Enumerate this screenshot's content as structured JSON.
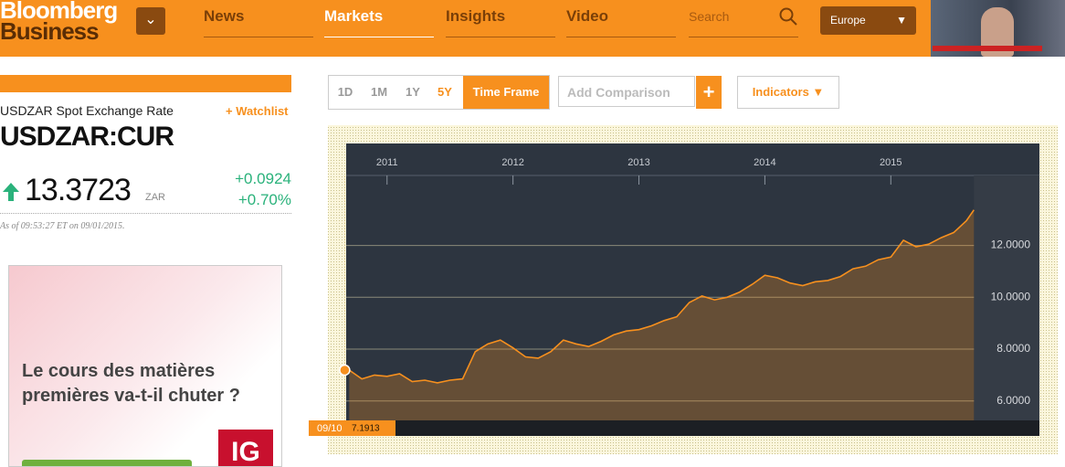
{
  "header": {
    "logo_top": "Bloomberg",
    "logo_bottom": "Business",
    "nav": [
      "News",
      "Markets",
      "Insights",
      "Video"
    ],
    "search": "Search",
    "region": "Europe"
  },
  "quote": {
    "name": "USDZAR Spot Exchange Rate",
    "watchlist": "+ Watchlist",
    "ticker": "USDZAR:CUR",
    "price": "13.3723",
    "currency": "ZAR",
    "change": "+0.0924",
    "change_pct": "+0.70%",
    "as_of": "As of 09:53:27 ET on 09/01/2015."
  },
  "ad": {
    "text": "Le cours des matières premières va-t-il chuter ?",
    "brand": "IG"
  },
  "controls": {
    "ranges": [
      "1D",
      "1M",
      "1Y",
      "5Y"
    ],
    "time_frame": "Time Frame",
    "comparison": "Add Comparison",
    "add": "+",
    "indicators": "Indicators ▼"
  },
  "chart_panel": {
    "cursor_date": "09/10",
    "cursor_value": "7.1913"
  },
  "chart_data": {
    "type": "line",
    "x": [
      2010.7,
      2010.8,
      2010.9,
      2011.0,
      2011.1,
      2011.2,
      2011.3,
      2011.4,
      2011.5,
      2011.6,
      2011.7,
      2011.8,
      2011.9,
      2012.0,
      2012.1,
      2012.2,
      2012.3,
      2012.4,
      2012.5,
      2012.6,
      2012.7,
      2012.8,
      2012.9,
      2013.0,
      2013.1,
      2013.2,
      2013.3,
      2013.4,
      2013.5,
      2013.6,
      2013.7,
      2013.8,
      2013.9,
      2014.0,
      2014.1,
      2014.2,
      2014.3,
      2014.4,
      2014.5,
      2014.6,
      2014.7,
      2014.8,
      2014.9,
      2015.0,
      2015.1,
      2015.2,
      2015.3,
      2015.4,
      2015.5,
      2015.6,
      2015.66
    ],
    "series": [
      {
        "color": "#f7901e",
        "values": [
          7.19,
          6.85,
          7.0,
          6.95,
          7.05,
          6.75,
          6.8,
          6.7,
          6.8,
          6.85,
          7.9,
          8.2,
          8.35,
          8.05,
          7.7,
          7.65,
          7.9,
          8.35,
          8.2,
          8.1,
          8.3,
          8.55,
          8.7,
          8.75,
          8.9,
          9.1,
          9.25,
          9.8,
          10.05,
          9.9,
          10.0,
          10.2,
          10.5,
          10.85,
          10.75,
          10.55,
          10.45,
          10.6,
          10.65,
          10.8,
          11.1,
          11.2,
          11.45,
          11.55,
          12.2,
          11.95,
          12.05,
          12.3,
          12.5,
          12.95,
          13.37
        ]
      }
    ],
    "xlim": [
      2010.69,
      2016.18
    ],
    "xticks": [
      2011,
      2012,
      2013,
      2014,
      2015
    ],
    "ylim": [
      5.25,
      14.7
    ],
    "yticks": [
      {
        "value": 6,
        "label": "6.0000"
      },
      {
        "value": 8,
        "label": "8.0000"
      },
      {
        "value": 10,
        "label": "10.0000"
      },
      {
        "value": 12,
        "label": "12.0000"
      }
    ],
    "grid": true
  }
}
